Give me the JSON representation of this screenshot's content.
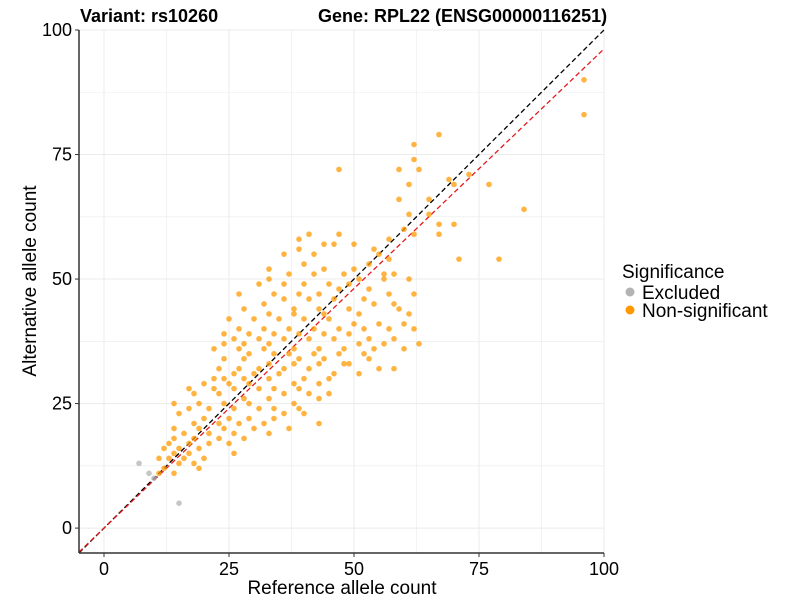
{
  "titles": {
    "variant": "Variant: rs10260",
    "gene": "Gene: RPL22 (ENSG00000116251)"
  },
  "colors": {
    "excluded": "#b3b3b3",
    "non_significant": "#ff9900",
    "identity_line": "#000000",
    "fit_line": "#e41a1c",
    "grid": "#ebebeb",
    "axis": "#333333"
  },
  "chart_data": {
    "type": "scatter",
    "xlabel": "Reference allele count",
    "ylabel": "Alternative allele count",
    "xlim": [
      -5,
      100
    ],
    "ylim": [
      -5,
      100
    ],
    "x_ticks": [
      0,
      25,
      50,
      75,
      100
    ],
    "y_ticks": [
      0,
      25,
      50,
      75,
      100
    ],
    "grid": true,
    "legend": {
      "title": "Significance",
      "placement": "right",
      "entries": [
        "Excluded",
        "Non-significant"
      ]
    },
    "lines": [
      {
        "kind": "identity",
        "style": "dashed",
        "color": "#000000",
        "slope": 1,
        "intercept": 0
      },
      {
        "kind": "fit",
        "style": "dashed",
        "color": "#e41a1c",
        "slope": 0.962,
        "intercept": 0
      }
    ],
    "series": [
      {
        "name": "Excluded",
        "color": "#b3b3b3",
        "points": [
          [
            7,
            13
          ],
          [
            9,
            11
          ],
          [
            10,
            10
          ],
          [
            15,
            5
          ]
        ]
      },
      {
        "name": "Non-significant",
        "color": "#ff9900",
        "points": [
          [
            96,
            90
          ],
          [
            96,
            83
          ],
          [
            67,
            79
          ],
          [
            62,
            77
          ],
          [
            62,
            74
          ],
          [
            63,
            72
          ],
          [
            59,
            72
          ],
          [
            47,
            72
          ],
          [
            73,
            71
          ],
          [
            69,
            70
          ],
          [
            61,
            69
          ],
          [
            70,
            69
          ],
          [
            77,
            69
          ],
          [
            65,
            66
          ],
          [
            59,
            66
          ],
          [
            84,
            64
          ],
          [
            79,
            54
          ],
          [
            71,
            54
          ],
          [
            61,
            63
          ],
          [
            70,
            61
          ],
          [
            67,
            61
          ],
          [
            67,
            59
          ],
          [
            65,
            63
          ],
          [
            60,
            60
          ],
          [
            62,
            59
          ],
          [
            57,
            58
          ],
          [
            47,
            59
          ],
          [
            41,
            59
          ],
          [
            39,
            58
          ],
          [
            44,
            57
          ],
          [
            50,
            57
          ],
          [
            54,
            56
          ],
          [
            39,
            56
          ],
          [
            46,
            57
          ],
          [
            36,
            55
          ],
          [
            42,
            55
          ],
          [
            55,
            55
          ],
          [
            57,
            54
          ],
          [
            40,
            53
          ],
          [
            44,
            52
          ],
          [
            50,
            52
          ],
          [
            53,
            53
          ],
          [
            33,
            52
          ],
          [
            37,
            51
          ],
          [
            42,
            51
          ],
          [
            48,
            51
          ],
          [
            56,
            51
          ],
          [
            58,
            51
          ],
          [
            33,
            50
          ],
          [
            31,
            49
          ],
          [
            36,
            49
          ],
          [
            40,
            49
          ],
          [
            45,
            49
          ],
          [
            49,
            49
          ],
          [
            51,
            50
          ],
          [
            56,
            50
          ],
          [
            61,
            50
          ],
          [
            27,
            47
          ],
          [
            34,
            47
          ],
          [
            39,
            47
          ],
          [
            43,
            47
          ],
          [
            47,
            48
          ],
          [
            53,
            48
          ],
          [
            57,
            47
          ],
          [
            62,
            47
          ],
          [
            36,
            46
          ],
          [
            41,
            46
          ],
          [
            46,
            46
          ],
          [
            52,
            46
          ],
          [
            58,
            45
          ],
          [
            32,
            45
          ],
          [
            38,
            44
          ],
          [
            43,
            44
          ],
          [
            49,
            44
          ],
          [
            54,
            45
          ],
          [
            59,
            44
          ],
          [
            28,
            44
          ],
          [
            33,
            43
          ],
          [
            38,
            43
          ],
          [
            44,
            43
          ],
          [
            51,
            43
          ],
          [
            61,
            43
          ],
          [
            25,
            42
          ],
          [
            30,
            42
          ],
          [
            35,
            42
          ],
          [
            40,
            42
          ],
          [
            45,
            42
          ],
          [
            50,
            41
          ],
          [
            55,
            41
          ],
          [
            60,
            41
          ],
          [
            27,
            40
          ],
          [
            32,
            40
          ],
          [
            37,
            40
          ],
          [
            42,
            40
          ],
          [
            47,
            40
          ],
          [
            52,
            40
          ],
          [
            57,
            40
          ],
          [
            62,
            40
          ],
          [
            24,
            39
          ],
          [
            29,
            39
          ],
          [
            34,
            39
          ],
          [
            39,
            39
          ],
          [
            44,
            39
          ],
          [
            49,
            39
          ],
          [
            53,
            38
          ],
          [
            58,
            38
          ],
          [
            26,
            38
          ],
          [
            31,
            38
          ],
          [
            36,
            38
          ],
          [
            41,
            38
          ],
          [
            46,
            38
          ],
          [
            51,
            37
          ],
          [
            56,
            37
          ],
          [
            63,
            37
          ],
          [
            24,
            37
          ],
          [
            28,
            37
          ],
          [
            33,
            37
          ],
          [
            38,
            36
          ],
          [
            43,
            36
          ],
          [
            48,
            36
          ],
          [
            54,
            36
          ],
          [
            60,
            36
          ],
          [
            22,
            36
          ],
          [
            27,
            36
          ],
          [
            32,
            36
          ],
          [
            37,
            35
          ],
          [
            42,
            35
          ],
          [
            47,
            35
          ],
          [
            52,
            35
          ],
          [
            29,
            35
          ],
          [
            34,
            35
          ],
          [
            39,
            34
          ],
          [
            44,
            34
          ],
          [
            49,
            33
          ],
          [
            53,
            34
          ],
          [
            24,
            34
          ],
          [
            28,
            34
          ],
          [
            33,
            33
          ],
          [
            38,
            33
          ],
          [
            43,
            33
          ],
          [
            48,
            33
          ],
          [
            55,
            32
          ],
          [
            58,
            32
          ],
          [
            23,
            32
          ],
          [
            27,
            32
          ],
          [
            31,
            32
          ],
          [
            36,
            32
          ],
          [
            41,
            32
          ],
          [
            46,
            31
          ],
          [
            51,
            31
          ],
          [
            26,
            31
          ],
          [
            30,
            31
          ],
          [
            35,
            31
          ],
          [
            40,
            30
          ],
          [
            45,
            30
          ],
          [
            22,
            30
          ],
          [
            24,
            30
          ],
          [
            28,
            30
          ],
          [
            33,
            30
          ],
          [
            38,
            29
          ],
          [
            43,
            29
          ],
          [
            20,
            29
          ],
          [
            25,
            29
          ],
          [
            29,
            29
          ],
          [
            34,
            28
          ],
          [
            39,
            28
          ],
          [
            17,
            28
          ],
          [
            22,
            28
          ],
          [
            26,
            28
          ],
          [
            31,
            28
          ],
          [
            36,
            27
          ],
          [
            41,
            27
          ],
          [
            45,
            27
          ],
          [
            18,
            27
          ],
          [
            23,
            27
          ],
          [
            28,
            26
          ],
          [
            33,
            26
          ],
          [
            38,
            25
          ],
          [
            43,
            26
          ],
          [
            14,
            25
          ],
          [
            19,
            25
          ],
          [
            24,
            25
          ],
          [
            29,
            25
          ],
          [
            34,
            24
          ],
          [
            39,
            24
          ],
          [
            17,
            24
          ],
          [
            21,
            24
          ],
          [
            26,
            24
          ],
          [
            31,
            24
          ],
          [
            36,
            23
          ],
          [
            40,
            23
          ],
          [
            15,
            23
          ],
          [
            20,
            22
          ],
          [
            25,
            22
          ],
          [
            29,
            22
          ],
          [
            34,
            22
          ],
          [
            18,
            21
          ],
          [
            23,
            21
          ],
          [
            27,
            21
          ],
          [
            32,
            21
          ],
          [
            43,
            21
          ],
          [
            14,
            20
          ],
          [
            19,
            20
          ],
          [
            24,
            20
          ],
          [
            30,
            20
          ],
          [
            37,
            20
          ],
          [
            16,
            19
          ],
          [
            21,
            19
          ],
          [
            26,
            19
          ],
          [
            33,
            19
          ],
          [
            14,
            18
          ],
          [
            18,
            18
          ],
          [
            23,
            18
          ],
          [
            28,
            18
          ],
          [
            13,
            17
          ],
          [
            17,
            17
          ],
          [
            21,
            17
          ],
          [
            25,
            17
          ],
          [
            15,
            16
          ],
          [
            19,
            16
          ],
          [
            12,
            16
          ],
          [
            14,
            15
          ],
          [
            17,
            15
          ],
          [
            26,
            15
          ],
          [
            13,
            14
          ],
          [
            16,
            14
          ],
          [
            20,
            14
          ],
          [
            11,
            14
          ],
          [
            15,
            13
          ],
          [
            18,
            13
          ],
          [
            12,
            12
          ],
          [
            19,
            12
          ],
          [
            11,
            11
          ],
          [
            14,
            11
          ]
        ]
      }
    ]
  }
}
